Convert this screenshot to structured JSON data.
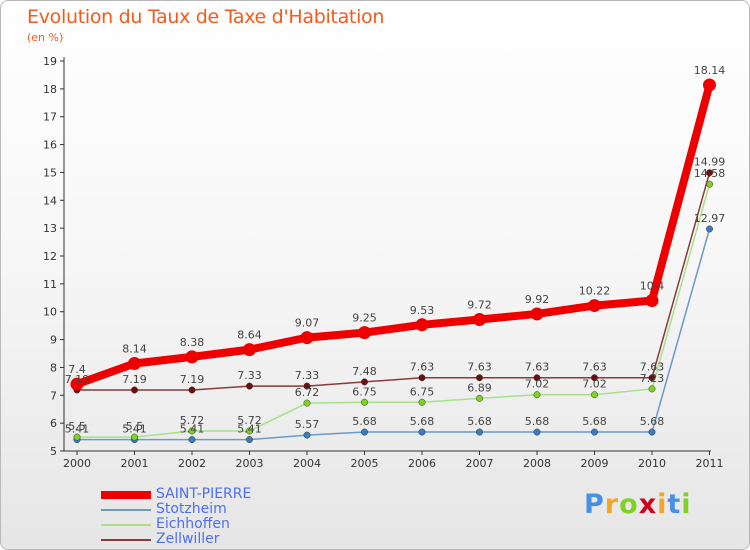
{
  "header": {
    "title": "Evolution du Taux de Taxe d'Habitation",
    "subtitle": "(en %)"
  },
  "brand": {
    "letters": [
      "P",
      "r",
      "o",
      "x",
      "i",
      "t",
      "i"
    ],
    "colors": [
      "#4a90e2",
      "#f5a623",
      "#7ed321",
      "#d0021b",
      "#f5a623",
      "#4a90e2",
      "#7ed321"
    ]
  },
  "chart_data": {
    "type": "line",
    "title": "Evolution du Taux de Taxe d'Habitation",
    "subtitle": "(en %)",
    "xlabel": "",
    "ylabel": "",
    "categories": [
      "2000",
      "2001",
      "2002",
      "2003",
      "2004",
      "2005",
      "2006",
      "2007",
      "2008",
      "2009",
      "2010",
      "2011"
    ],
    "ylim": [
      5,
      19
    ],
    "yticks": [
      "5",
      "6",
      "7",
      "8",
      "9",
      "10",
      "11",
      "12",
      "13",
      "14",
      "15",
      "16",
      "17",
      "18",
      "19"
    ],
    "grid": false,
    "legend_position": "bottom-left",
    "series": [
      {
        "name": "Stotzheim",
        "color": "#6a9ac9",
        "marker": "#3a7cc0",
        "thick": false,
        "values": [
          5.41,
          5.41,
          5.41,
          5.41,
          5.57,
          5.68,
          5.68,
          5.68,
          5.68,
          5.68,
          5.68,
          12.97
        ],
        "labels": [
          "5.41",
          "5.41",
          "5.41",
          "5.41",
          "5.57",
          "5.68",
          "5.68",
          "5.68",
          "5.68",
          "5.68",
          "5.68",
          "12.97"
        ]
      },
      {
        "name": "Eichhoffen",
        "color": "#a8e08a",
        "marker": "#7ed321",
        "thick": false,
        "values": [
          5.5,
          5.5,
          5.72,
          5.72,
          6.72,
          6.75,
          6.75,
          6.89,
          7.02,
          7.02,
          7.23,
          14.58
        ],
        "labels": [
          "5.5",
          "5.5",
          "5.72",
          "5.72",
          "6.72",
          "6.75",
          "6.75",
          "6.89",
          "7.02",
          "7.02",
          "7.23",
          "14.58"
        ]
      },
      {
        "name": "Zellwiller",
        "color": "#8b3a3a",
        "marker": "#6b0f0f",
        "thick": false,
        "values": [
          7.19,
          7.19,
          7.19,
          7.33,
          7.33,
          7.48,
          7.63,
          7.63,
          7.63,
          7.63,
          7.63,
          14.99
        ],
        "labels": [
          "7.19",
          "7.19",
          "7.19",
          "7.33",
          "7.33",
          "7.48",
          "7.63",
          "7.63",
          "7.63",
          "7.63",
          "7.63",
          "14.99"
        ]
      },
      {
        "name": "SAINT-PIERRE",
        "color": "#ee0000",
        "marker": "#ee0000",
        "thick": true,
        "values": [
          7.4,
          8.14,
          8.38,
          8.64,
          9.07,
          9.25,
          9.53,
          9.72,
          9.92,
          10.22,
          10.4,
          18.14
        ],
        "labels": [
          "7.4",
          "8.14",
          "8.38",
          "8.64",
          "9.07",
          "9.25",
          "9.53",
          "9.72",
          "9.92",
          "10.22",
          "10.4",
          "18.14"
        ]
      }
    ],
    "legend_order": [
      "SAINT-PIERRE",
      "Stotzheim",
      "Eichhoffen",
      "Zellwiller"
    ]
  }
}
